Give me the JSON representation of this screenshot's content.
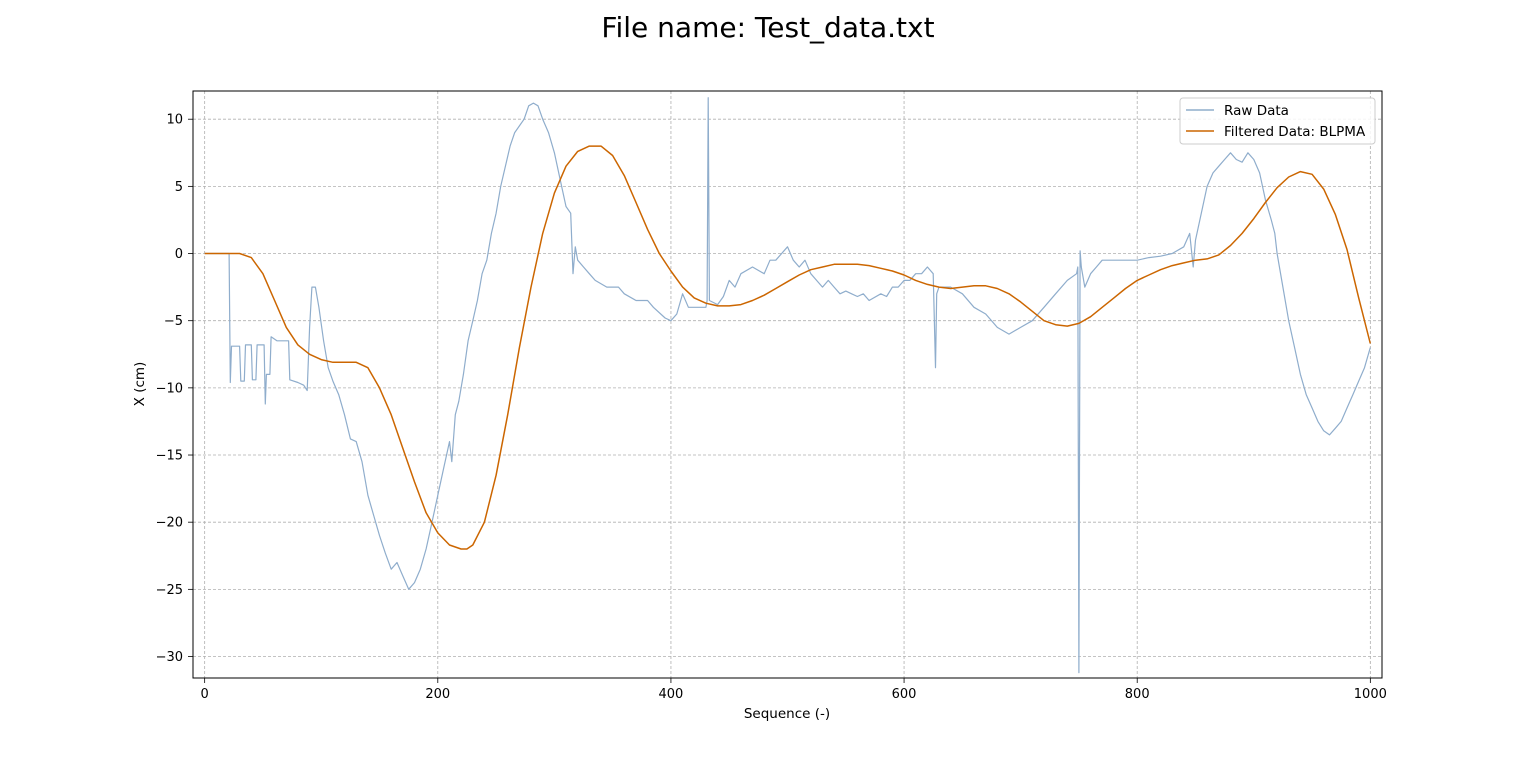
{
  "chart_data": {
    "type": "line",
    "title": "File name: Test_data.txt",
    "xlabel": "Sequence (-)",
    "ylabel": "X (cm)",
    "xlim": [
      -10,
      1010
    ],
    "ylim": [
      -31.6,
      12.1
    ],
    "xticks": [
      0,
      200,
      400,
      600,
      800,
      1000
    ],
    "xtick_labels": [
      "0",
      "200",
      "400",
      "600",
      "800",
      "1000"
    ],
    "yticks": [
      10,
      5,
      0,
      -5,
      -10,
      -15,
      -20,
      -25,
      -30
    ],
    "ytick_labels": [
      "10",
      "5",
      "0",
      "−5",
      "−10",
      "−15",
      "−20",
      "−25",
      "−30"
    ],
    "grid": true,
    "legend_position": "top-right",
    "series": [
      {
        "name": "Raw Data",
        "color": "#8fadcc",
        "points": [
          [
            0,
            0
          ],
          [
            21,
            0
          ],
          [
            22,
            -9.6
          ],
          [
            23,
            -6.9
          ],
          [
            30,
            -6.9
          ],
          [
            31,
            -9.5
          ],
          [
            34,
            -9.5
          ],
          [
            35,
            -6.8
          ],
          [
            40,
            -6.8
          ],
          [
            41,
            -9.4
          ],
          [
            44,
            -9.4
          ],
          [
            45,
            -6.8
          ],
          [
            51,
            -6.8
          ],
          [
            52,
            -11.2
          ],
          [
            53,
            -9.0
          ],
          [
            56,
            -9.0
          ],
          [
            57,
            -6.2
          ],
          [
            62,
            -6.5
          ],
          [
            72,
            -6.5
          ],
          [
            73,
            -9.4
          ],
          [
            80,
            -9.6
          ],
          [
            85,
            -9.8
          ],
          [
            88,
            -10.2
          ],
          [
            90,
            -5.5
          ],
          [
            92,
            -2.5
          ],
          [
            95,
            -2.5
          ],
          [
            98,
            -4.0
          ],
          [
            102,
            -6.5
          ],
          [
            106,
            -8.5
          ],
          [
            110,
            -9.5
          ],
          [
            115,
            -10.5
          ],
          [
            120,
            -12.0
          ],
          [
            125,
            -13.8
          ],
          [
            130,
            -14.0
          ],
          [
            135,
            -15.5
          ],
          [
            140,
            -18.0
          ],
          [
            145,
            -19.5
          ],
          [
            150,
            -21.0
          ],
          [
            155,
            -22.3
          ],
          [
            160,
            -23.5
          ],
          [
            165,
            -23.0
          ],
          [
            170,
            -24.0
          ],
          [
            175,
            -25.0
          ],
          [
            180,
            -24.5
          ],
          [
            185,
            -23.5
          ],
          [
            190,
            -22.0
          ],
          [
            195,
            -20.0
          ],
          [
            200,
            -18.0
          ],
          [
            205,
            -16.0
          ],
          [
            210,
            -14.0
          ],
          [
            212,
            -15.5
          ],
          [
            215,
            -12.0
          ],
          [
            218,
            -11.0
          ],
          [
            222,
            -9.0
          ],
          [
            226,
            -6.5
          ],
          [
            230,
            -5.0
          ],
          [
            234,
            -3.5
          ],
          [
            238,
            -1.5
          ],
          [
            242,
            -0.5
          ],
          [
            246,
            1.5
          ],
          [
            250,
            3.0
          ],
          [
            254,
            5.0
          ],
          [
            258,
            6.5
          ],
          [
            262,
            8.0
          ],
          [
            266,
            9.0
          ],
          [
            270,
            9.5
          ],
          [
            274,
            10.0
          ],
          [
            278,
            11.0
          ],
          [
            282,
            11.2
          ],
          [
            286,
            11.0
          ],
          [
            290,
            10.0
          ],
          [
            295,
            9.0
          ],
          [
            300,
            7.5
          ],
          [
            305,
            5.5
          ],
          [
            310,
            3.5
          ],
          [
            314,
            3.0
          ],
          [
            316,
            -1.5
          ],
          [
            318,
            0.5
          ],
          [
            320,
            -0.5
          ],
          [
            325,
            -1.0
          ],
          [
            330,
            -1.5
          ],
          [
            335,
            -2.0
          ],
          [
            345,
            -2.5
          ],
          [
            355,
            -2.5
          ],
          [
            360,
            -3.0
          ],
          [
            370,
            -3.5
          ],
          [
            380,
            -3.5
          ],
          [
            385,
            -4.0
          ],
          [
            395,
            -4.8
          ],
          [
            400,
            -5.0
          ],
          [
            405,
            -4.5
          ],
          [
            410,
            -3.0
          ],
          [
            415,
            -4.0
          ],
          [
            420,
            -4.0
          ],
          [
            430,
            -4.0
          ],
          [
            431,
            -3.5
          ],
          [
            432,
            11.6
          ],
          [
            433,
            -3.5
          ],
          [
            440,
            -3.8
          ],
          [
            445,
            -3.2
          ],
          [
            450,
            -2.0
          ],
          [
            455,
            -2.5
          ],
          [
            460,
            -1.5
          ],
          [
            470,
            -1.0
          ],
          [
            480,
            -1.5
          ],
          [
            485,
            -0.5
          ],
          [
            490,
            -0.5
          ],
          [
            500,
            0.5
          ],
          [
            505,
            -0.5
          ],
          [
            510,
            -1.0
          ],
          [
            515,
            -0.5
          ],
          [
            520,
            -1.5
          ],
          [
            525,
            -2.0
          ],
          [
            530,
            -2.5
          ],
          [
            535,
            -2.0
          ],
          [
            540,
            -2.5
          ],
          [
            545,
            -3.0
          ],
          [
            550,
            -2.8
          ],
          [
            555,
            -3.0
          ],
          [
            560,
            -3.2
          ],
          [
            565,
            -3.0
          ],
          [
            570,
            -3.5
          ],
          [
            580,
            -3.0
          ],
          [
            585,
            -3.2
          ],
          [
            590,
            -2.5
          ],
          [
            595,
            -2.5
          ],
          [
            600,
            -2.0
          ],
          [
            605,
            -2.0
          ],
          [
            610,
            -1.5
          ],
          [
            615,
            -1.5
          ],
          [
            620,
            -1.0
          ],
          [
            625,
            -1.5
          ],
          [
            627,
            -8.5
          ],
          [
            628,
            -3.0
          ],
          [
            630,
            -2.5
          ],
          [
            640,
            -2.5
          ],
          [
            650,
            -3.0
          ],
          [
            660,
            -4.0
          ],
          [
            670,
            -4.5
          ],
          [
            680,
            -5.5
          ],
          [
            690,
            -6.0
          ],
          [
            700,
            -5.5
          ],
          [
            710,
            -5.0
          ],
          [
            720,
            -4.0
          ],
          [
            730,
            -3.0
          ],
          [
            740,
            -2.0
          ],
          [
            748,
            -1.5
          ],
          [
            749,
            -1.0
          ],
          [
            750,
            -31.2
          ],
          [
            751,
            0.2
          ],
          [
            752,
            -1.0
          ],
          [
            755,
            -2.5
          ],
          [
            760,
            -1.5
          ],
          [
            765,
            -1.0
          ],
          [
            770,
            -0.5
          ],
          [
            780,
            -0.5
          ],
          [
            790,
            -0.5
          ],
          [
            800,
            -0.5
          ],
          [
            810,
            -0.3
          ],
          [
            820,
            -0.2
          ],
          [
            830,
            0.0
          ],
          [
            840,
            0.5
          ],
          [
            845,
            1.5
          ],
          [
            848,
            -1.0
          ],
          [
            850,
            1.0
          ],
          [
            855,
            3.0
          ],
          [
            860,
            5.0
          ],
          [
            865,
            6.0
          ],
          [
            870,
            6.5
          ],
          [
            875,
            7.0
          ],
          [
            880,
            7.5
          ],
          [
            885,
            7.0
          ],
          [
            890,
            6.8
          ],
          [
            895,
            7.5
          ],
          [
            900,
            7.0
          ],
          [
            905,
            6.0
          ],
          [
            910,
            4.0
          ],
          [
            915,
            2.5
          ],
          [
            918,
            1.5
          ],
          [
            920,
            0.0
          ],
          [
            925,
            -2.5
          ],
          [
            930,
            -5.0
          ],
          [
            935,
            -7.0
          ],
          [
            940,
            -9.0
          ],
          [
            945,
            -10.5
          ],
          [
            950,
            -11.5
          ],
          [
            955,
            -12.5
          ],
          [
            960,
            -13.2
          ],
          [
            965,
            -13.5
          ],
          [
            970,
            -13.0
          ],
          [
            975,
            -12.5
          ],
          [
            980,
            -11.5
          ],
          [
            985,
            -10.5
          ],
          [
            990,
            -9.5
          ],
          [
            995,
            -8.5
          ],
          [
            1000,
            -7.0
          ]
        ]
      },
      {
        "name": "Filtered Data: BLPMA",
        "color": "#cc6600",
        "points": [
          [
            0,
            0
          ],
          [
            30,
            0
          ],
          [
            40,
            -0.3
          ],
          [
            50,
            -1.5
          ],
          [
            60,
            -3.5
          ],
          [
            70,
            -5.5
          ],
          [
            80,
            -6.8
          ],
          [
            90,
            -7.5
          ],
          [
            100,
            -7.9
          ],
          [
            110,
            -8.1
          ],
          [
            120,
            -8.1
          ],
          [
            130,
            -8.1
          ],
          [
            140,
            -8.5
          ],
          [
            150,
            -10.0
          ],
          [
            160,
            -12.0
          ],
          [
            170,
            -14.5
          ],
          [
            180,
            -17.0
          ],
          [
            190,
            -19.3
          ],
          [
            200,
            -20.8
          ],
          [
            210,
            -21.7
          ],
          [
            220,
            -22.0
          ],
          [
            225,
            -22.0
          ],
          [
            230,
            -21.7
          ],
          [
            240,
            -20.0
          ],
          [
            250,
            -16.5
          ],
          [
            260,
            -12.0
          ],
          [
            270,
            -7.0
          ],
          [
            280,
            -2.5
          ],
          [
            290,
            1.5
          ],
          [
            300,
            4.5
          ],
          [
            310,
            6.5
          ],
          [
            320,
            7.6
          ],
          [
            330,
            8.0
          ],
          [
            340,
            8.0
          ],
          [
            350,
            7.3
          ],
          [
            360,
            5.8
          ],
          [
            370,
            3.8
          ],
          [
            380,
            1.8
          ],
          [
            390,
            0.0
          ],
          [
            400,
            -1.3
          ],
          [
            410,
            -2.5
          ],
          [
            420,
            -3.3
          ],
          [
            430,
            -3.7
          ],
          [
            440,
            -3.9
          ],
          [
            450,
            -3.9
          ],
          [
            460,
            -3.8
          ],
          [
            470,
            -3.5
          ],
          [
            480,
            -3.1
          ],
          [
            490,
            -2.6
          ],
          [
            500,
            -2.1
          ],
          [
            510,
            -1.6
          ],
          [
            520,
            -1.2
          ],
          [
            530,
            -1.0
          ],
          [
            540,
            -0.8
          ],
          [
            550,
            -0.8
          ],
          [
            560,
            -0.8
          ],
          [
            570,
            -0.9
          ],
          [
            580,
            -1.1
          ],
          [
            590,
            -1.3
          ],
          [
            600,
            -1.6
          ],
          [
            610,
            -2.0
          ],
          [
            620,
            -2.3
          ],
          [
            630,
            -2.5
          ],
          [
            640,
            -2.6
          ],
          [
            650,
            -2.5
          ],
          [
            660,
            -2.4
          ],
          [
            670,
            -2.4
          ],
          [
            680,
            -2.6
          ],
          [
            690,
            -3.0
          ],
          [
            700,
            -3.6
          ],
          [
            710,
            -4.3
          ],
          [
            720,
            -5.0
          ],
          [
            730,
            -5.3
          ],
          [
            740,
            -5.4
          ],
          [
            750,
            -5.2
          ],
          [
            760,
            -4.7
          ],
          [
            770,
            -4.0
          ],
          [
            780,
            -3.3
          ],
          [
            790,
            -2.6
          ],
          [
            800,
            -2.0
          ],
          [
            810,
            -1.6
          ],
          [
            820,
            -1.2
          ],
          [
            830,
            -0.9
          ],
          [
            840,
            -0.7
          ],
          [
            850,
            -0.5
          ],
          [
            860,
            -0.4
          ],
          [
            870,
            -0.1
          ],
          [
            880,
            0.6
          ],
          [
            890,
            1.5
          ],
          [
            900,
            2.6
          ],
          [
            910,
            3.8
          ],
          [
            920,
            4.9
          ],
          [
            930,
            5.7
          ],
          [
            940,
            6.1
          ],
          [
            950,
            5.9
          ],
          [
            960,
            4.8
          ],
          [
            970,
            2.9
          ],
          [
            980,
            0.3
          ],
          [
            990,
            -3.3
          ],
          [
            1000,
            -6.7
          ]
        ]
      }
    ]
  }
}
